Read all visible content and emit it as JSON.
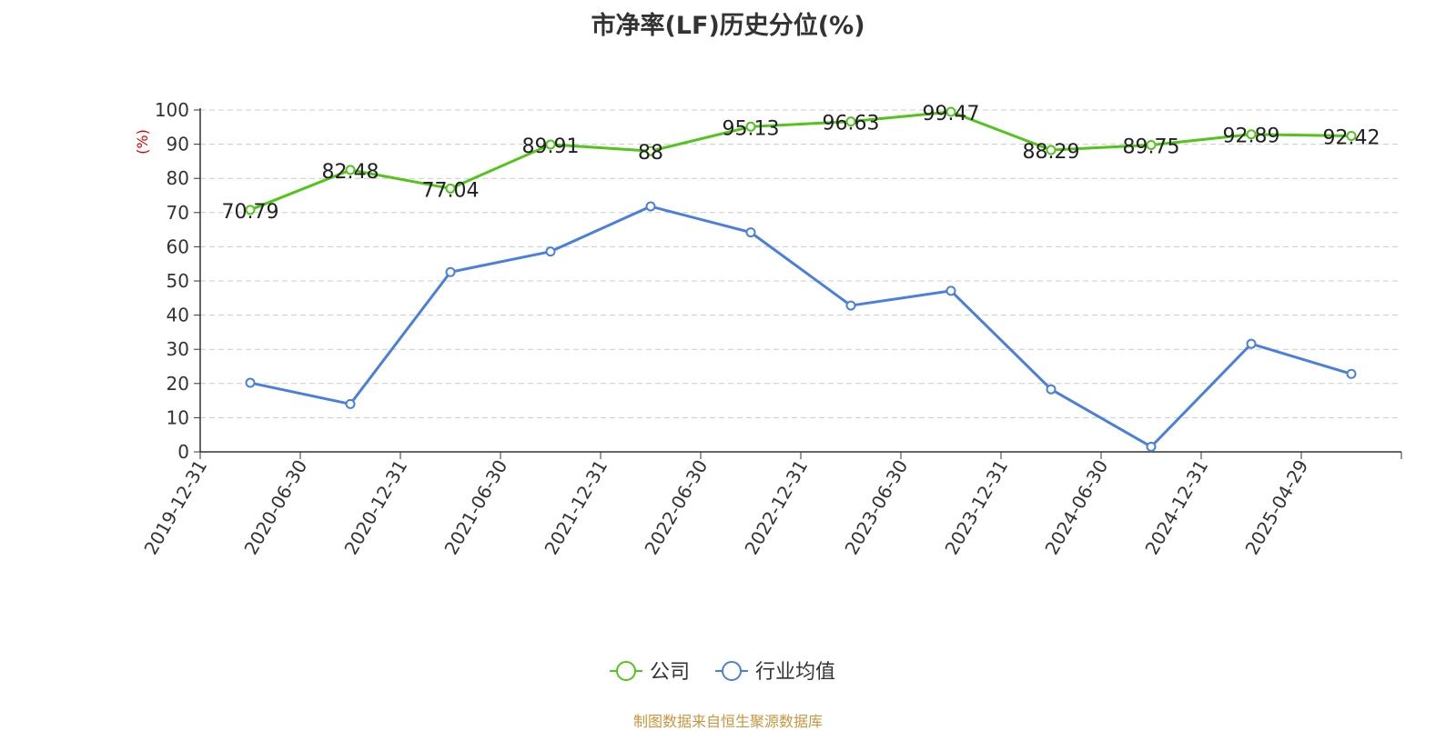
{
  "chart_data": {
    "type": "line",
    "title": "市净率(LF)历史分位(%)",
    "ylabel": "(%)",
    "xlabel": "",
    "categories": [
      "2019-12-31",
      "2020-06-30",
      "2020-12-31",
      "2021-06-30",
      "2021-12-31",
      "2022-06-30",
      "2022-12-31",
      "2023-06-30",
      "2023-12-31",
      "2024-06-30",
      "2024-12-31",
      "2025-04-29"
    ],
    "ylim": [
      0,
      100
    ],
    "yticks": [
      0,
      10,
      20,
      30,
      40,
      50,
      60,
      70,
      80,
      90,
      100
    ],
    "grid": true,
    "legend_position": "bottom-center",
    "series": [
      {
        "name": "公司",
        "color": "#52c41a",
        "values": [
          70.79,
          82.48,
          77.04,
          89.91,
          88,
          95.13,
          96.63,
          99.47,
          88.29,
          89.75,
          92.89,
          92.42
        ],
        "labels": [
          "70.79",
          "82.48",
          "77.04",
          "89.91",
          "88",
          "95.13",
          "96.63",
          "99.47",
          "88.29",
          "89.75",
          "92.89",
          "92.42"
        ]
      },
      {
        "name": "行业均值",
        "color": "#4a7fdc",
        "values": [
          20.2,
          14.0,
          52.6,
          58.6,
          71.8,
          64.2,
          42.8,
          47.1,
          18.3,
          1.5,
          31.6,
          22.8
        ]
      }
    ],
    "source": "制图数据来自恒生聚源数据库"
  }
}
